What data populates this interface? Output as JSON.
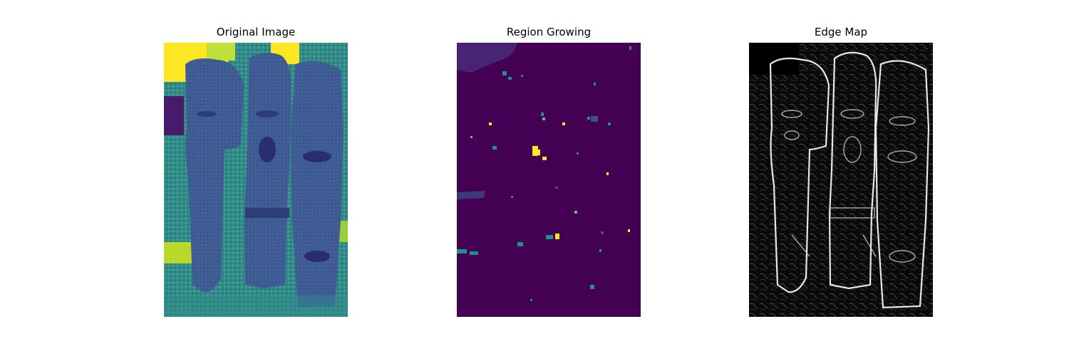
{
  "panels": [
    {
      "title": "Original Image",
      "colormap": "viridis",
      "icon": "totem-photo-icon"
    },
    {
      "title": "Region Growing",
      "colormap": "viridis",
      "icon": "segmentation-map-icon"
    },
    {
      "title": "Edge Map",
      "colormap": "gray",
      "icon": "edge-map-icon"
    }
  ],
  "colors": {
    "viridis_dark": "#440154",
    "viridis_mid": "#3b528b",
    "viridis_teal": "#21918c",
    "viridis_green": "#5ec962",
    "viridis_yellow": "#fde725",
    "edge_background": "#000000",
    "edge_line": "#ffffff"
  }
}
